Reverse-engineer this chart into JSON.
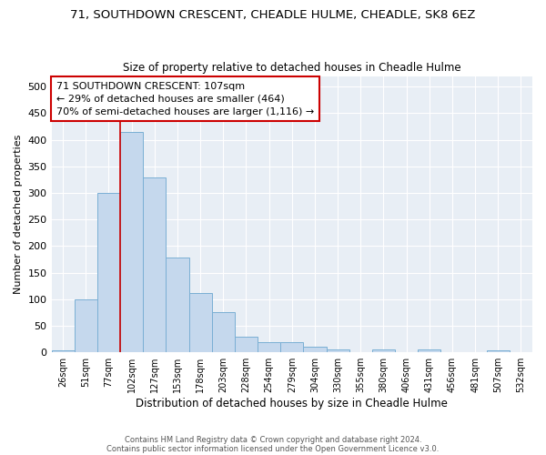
{
  "title": "71, SOUTHDOWN CRESCENT, CHEADLE HULME, CHEADLE, SK8 6EZ",
  "subtitle": "Size of property relative to detached houses in Cheadle Hulme",
  "xlabel": "Distribution of detached houses by size in Cheadle Hulme",
  "ylabel": "Number of detached properties",
  "categories": [
    "26sqm",
    "51sqm",
    "77sqm",
    "102sqm",
    "127sqm",
    "153sqm",
    "178sqm",
    "203sqm",
    "228sqm",
    "254sqm",
    "279sqm",
    "304sqm",
    "330sqm",
    "355sqm",
    "380sqm",
    "406sqm",
    "431sqm",
    "456sqm",
    "481sqm",
    "507sqm",
    "532sqm"
  ],
  "values": [
    3,
    100,
    300,
    415,
    330,
    178,
    112,
    75,
    30,
    20,
    20,
    10,
    5,
    0,
    5,
    0,
    5,
    0,
    0,
    3,
    0
  ],
  "bar_color": "#c5d8ed",
  "bar_edge_color": "#7aafd4",
  "bg_color": "#e8eef5",
  "grid_color": "#ffffff",
  "vline_x_index": 3,
  "vline_color": "#cc0000",
  "annotation_text": "71 SOUTHDOWN CRESCENT: 107sqm\n← 29% of detached houses are smaller (464)\n70% of semi-detached houses are larger (1,116) →",
  "annotation_box_color": "#ffffff",
  "annotation_border_color": "#cc0000",
  "footer1": "Contains HM Land Registry data © Crown copyright and database right 2024.",
  "footer2": "Contains public sector information licensed under the Open Government Licence v3.0.",
  "ylim_max": 520,
  "yticks": [
    0,
    50,
    100,
    150,
    200,
    250,
    300,
    350,
    400,
    450,
    500
  ]
}
